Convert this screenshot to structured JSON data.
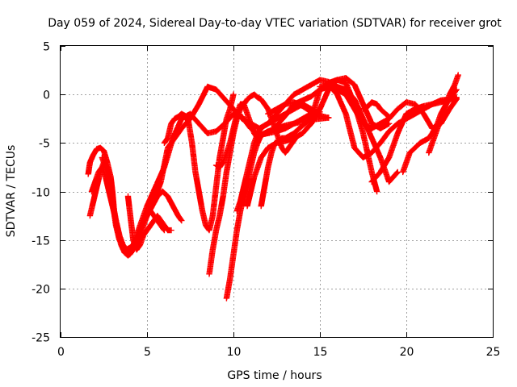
{
  "chart_data": {
    "type": "scatter",
    "title": "Day 059 of 2024, Sidereal Day-to-day VTEC variation (SDTVAR) for receiver grot",
    "xlabel": "GPS time / hours",
    "ylabel": "SDTVAR / TECUs",
    "xlim": [
      0,
      25
    ],
    "ylim": [
      -25,
      5
    ],
    "xticks": [
      "0",
      "5",
      "10",
      "15",
      "20",
      "25"
    ],
    "yticks": [
      "5",
      "0",
      "-5",
      "-10",
      "-15",
      "-20",
      "-25"
    ],
    "grid": true,
    "marker": "+",
    "marker_color": "#ff0000",
    "series": [
      {
        "x": [
          1.6,
          1.7,
          1.9,
          2.1,
          2.3,
          2.5,
          2.7,
          2.9,
          3.0,
          3.1,
          3.3,
          3.5,
          3.7,
          3.9,
          4.1,
          4.3,
          4.6,
          5.0,
          5.5,
          6.0,
          6.5,
          7.0,
          7.5,
          8.0,
          8.5,
          9.0,
          9.5,
          10.0,
          10.5,
          11.0,
          11.5,
          12.0,
          12.5,
          13.0,
          13.5,
          14.0,
          14.5,
          15.0,
          15.5,
          16.0,
          16.5,
          17.0,
          17.5,
          18.0,
          18.3
        ],
        "y": [
          -8.2,
          -7.0,
          -6.2,
          -5.6,
          -5.5,
          -5.8,
          -7.0,
          -8.5,
          -10.0,
          -12.0,
          -14.0,
          -15.5,
          -16.3,
          -16.6,
          -16.2,
          -15.0,
          -13.5,
          -11.5,
          -9.5,
          -7.5,
          -4.5,
          -2.5,
          -2.0,
          -3.0,
          -4.0,
          -3.8,
          -3.0,
          -2.0,
          -2.3,
          -3.5,
          -4.2,
          -4.0,
          -3.2,
          -2.2,
          -1.0,
          -0.6,
          -0.2,
          0.5,
          1.2,
          1.5,
          1.2,
          -1.0,
          -4.0,
          -8.0,
          -10.0
        ]
      },
      {
        "x": [
          1.7,
          1.9,
          2.1,
          2.3,
          2.5,
          2.7,
          2.9,
          3.0,
          3.2,
          3.4,
          3.6,
          3.8,
          4.0,
          4.2,
          4.4,
          4.6,
          4.8,
          5.0,
          5.4,
          5.8,
          6.2,
          6.6,
          7.0,
          7.5,
          8.0,
          8.5,
          9.0,
          9.5,
          10.0,
          10.5,
          11.0,
          11.5,
          12.0,
          12.5,
          13.0,
          13.5,
          14.0,
          14.5,
          15.0,
          15.5,
          16.0,
          16.5,
          17.0,
          17.5,
          18.0,
          18.5,
          19.0,
          19.5
        ],
        "y": [
          -12.5,
          -11.0,
          -9.5,
          -8.0,
          -7.0,
          -7.5,
          -9.0,
          -11.0,
          -13.5,
          -15.0,
          -15.5,
          -16.0,
          -16.5,
          -16.0,
          -15.3,
          -14.5,
          -13.5,
          -12.5,
          -11.0,
          -9.0,
          -5.5,
          -4.5,
          -3.5,
          -2.5,
          -1.0,
          0.8,
          0.5,
          -0.5,
          -1.5,
          -2.5,
          -3.0,
          -3.5,
          -3.0,
          -2.0,
          -1.0,
          0.0,
          0.5,
          1.0,
          1.5,
          1.3,
          0.8,
          0.5,
          -0.5,
          -2.5,
          -4.5,
          -6.5,
          -9.0,
          -8.0
        ]
      },
      {
        "x": [
          1.8,
          2.0,
          2.2,
          2.4,
          2.6,
          2.8,
          3.0,
          3.2,
          3.4,
          3.6,
          3.8,
          4.0,
          4.2,
          4.4,
          4.6,
          4.8,
          5.0,
          5.3,
          5.6,
          5.9,
          6.2,
          6.5,
          6.8,
          7.0
        ],
        "y": [
          -10.0,
          -9.0,
          -8.0,
          -7.5,
          -8.5,
          -10.0,
          -11.5,
          -13.0,
          -14.5,
          -15.5,
          -16.0,
          -15.8,
          -15.5,
          -15.0,
          -14.0,
          -13.0,
          -12.5,
          -11.5,
          -10.5,
          -10.0,
          -10.5,
          -11.5,
          -12.5,
          -13.0
        ]
      },
      {
        "x": [
          2.4,
          2.6,
          2.8,
          3.0,
          3.2,
          3.4,
          3.6,
          3.8,
          4.0,
          4.2,
          4.4,
          4.6,
          4.8,
          5.0,
          5.2,
          5.4,
          5.6,
          5.8,
          6.0
        ],
        "y": [
          -6.5,
          -7.5,
          -9.0,
          -11.0,
          -13.0,
          -14.5,
          -15.5,
          -16.0,
          -16.2,
          -16.0,
          -15.0,
          -14.0,
          -13.0,
          -12.5,
          -12.0,
          -12.5,
          -13.0,
          -13.5,
          -14.0
        ]
      },
      {
        "x": [
          3.9,
          4.0,
          4.1,
          4.2,
          4.4,
          4.6,
          4.8,
          5.0,
          5.2,
          5.4,
          5.6,
          5.8,
          6.0,
          6.2,
          6.4
        ],
        "y": [
          -10.5,
          -12.0,
          -13.5,
          -15.0,
          -16.0,
          -15.5,
          -14.5,
          -14.0,
          -13.5,
          -13.0,
          -12.5,
          -13.0,
          -13.5,
          -14.0,
          -14.0
        ]
      },
      {
        "x": [
          6.0,
          6.2,
          6.4,
          6.6,
          6.8,
          7.0,
          7.2,
          7.4,
          7.6,
          7.8,
          8.0,
          8.2,
          8.4,
          8.6,
          8.8,
          9.0,
          9.2,
          9.4,
          9.6,
          9.8,
          10.0
        ],
        "y": [
          -5.0,
          -4.5,
          -3.0,
          -2.5,
          -2.3,
          -2.0,
          -2.2,
          -2.8,
          -5.0,
          -8.0,
          -10.0,
          -12.0,
          -13.5,
          -14.0,
          -12.5,
          -9.5,
          -6.5,
          -4.5,
          -2.5,
          -1.5,
          0.0
        ]
      },
      {
        "x": [
          8.6,
          8.8,
          9.0,
          9.2,
          9.4,
          9.6,
          9.8,
          10.0,
          10.2,
          10.4,
          10.6,
          10.8,
          11.0,
          11.2,
          11.4,
          11.6,
          11.8,
          12.0,
          12.2,
          12.4,
          12.6,
          12.8,
          13.0,
          13.2,
          13.4,
          13.6
        ],
        "y": [
          -18.5,
          -16.0,
          -14.0,
          -12.5,
          -10.5,
          -8.0,
          -6.0,
          -4.0,
          -2.5,
          -1.5,
          -1.0,
          -0.5,
          -0.2,
          0.0,
          -0.3,
          -0.5,
          -1.0,
          -1.5,
          -2.5,
          -3.5,
          -4.5,
          -5.5,
          -6.0,
          -5.5,
          -5.0,
          -4.5
        ]
      },
      {
        "x": [
          9.0,
          9.2,
          9.4,
          9.6,
          9.8,
          10.0,
          10.2,
          10.4,
          10.6,
          10.8,
          11.0,
          11.2,
          11.4,
          11.6,
          11.8,
          12.0,
          12.5,
          13.0,
          13.5,
          14.0,
          14.5,
          15.0,
          15.5
        ],
        "y": [
          -7.3,
          -7.5,
          -7.0,
          -6.0,
          -5.0,
          -3.5,
          -2.0,
          -1.0,
          -1.0,
          -2.0,
          -3.0,
          -4.0,
          -4.5,
          -4.2,
          -4.0,
          -3.8,
          -3.5,
          -3.2,
          -3.0,
          -2.8,
          -2.6,
          -2.5,
          -2.4
        ]
      },
      {
        "x": [
          9.6,
          9.8,
          10.0,
          10.2,
          10.4,
          10.6,
          10.8,
          11.0,
          11.2,
          11.4,
          11.6,
          11.8,
          12.0,
          12.5,
          13.0,
          13.5,
          14.0,
          14.5,
          15.0
        ],
        "y": [
          -21.0,
          -19.0,
          -16.5,
          -14.0,
          -12.0,
          -10.5,
          -9.0,
          -7.5,
          -6.0,
          -5.0,
          -4.2,
          -4.0,
          -4.0,
          -3.8,
          -3.5,
          -3.0,
          -2.5,
          -2.0,
          -1.8
        ]
      },
      {
        "x": [
          10.2,
          10.4,
          10.6,
          10.8,
          11.0,
          11.2,
          11.4,
          11.6,
          11.8,
          12.0,
          12.5,
          13.0,
          13.5,
          14.0,
          14.5,
          15.0
        ],
        "y": [
          -12.0,
          -11.0,
          -9.5,
          -8.0,
          -6.5,
          -5.0,
          -4.0,
          -3.5,
          -3.2,
          -3.0,
          -2.5,
          -2.0,
          -1.5,
          -1.0,
          -1.5,
          -2.0
        ]
      },
      {
        "x": [
          10.8,
          11.0,
          11.2,
          11.4,
          11.6,
          11.8,
          12.0,
          12.5,
          13.0,
          13.5,
          14.0,
          14.5,
          15.0,
          15.5,
          16.0,
          16.5,
          17.0,
          17.5,
          18.0,
          18.5,
          19.0
        ],
        "y": [
          -11.5,
          -10.0,
          -8.5,
          -7.5,
          -6.5,
          -6.0,
          -5.5,
          -5.0,
          -4.8,
          -4.5,
          -4.0,
          -3.0,
          -1.5,
          0.5,
          1.5,
          1.7,
          1.0,
          -1.0,
          -3.0,
          -3.5,
          -3.0
        ]
      },
      {
        "x": [
          11.6,
          11.8,
          12.0,
          12.2,
          12.4,
          12.6,
          12.8,
          13.0,
          13.5,
          14.0,
          14.5,
          15.0,
          15.5,
          16.0,
          16.5,
          17.0,
          17.5,
          18.0,
          18.5,
          19.0,
          19.5,
          20.0,
          20.5,
          21.0,
          21.5,
          22.0,
          22.5,
          22.9
        ],
        "y": [
          -11.5,
          -9.5,
          -7.5,
          -6.0,
          -5.0,
          -4.8,
          -4.5,
          -4.5,
          -4.0,
          -3.2,
          -2.5,
          0.5,
          0.8,
          0.5,
          0.0,
          -1.5,
          -3.0,
          -3.5,
          -3.0,
          -2.5,
          -1.5,
          -0.8,
          -1.0,
          -2.0,
          -3.5,
          -3.0,
          -1.5,
          -0.5
        ]
      },
      {
        "x": [
          15.0,
          15.5,
          16.0,
          16.5,
          17.0,
          17.5,
          18.0,
          18.5,
          19.0,
          19.5,
          20.0,
          20.5,
          21.0,
          21.5,
          22.0,
          22.5,
          22.9
        ],
        "y": [
          0.8,
          1.0,
          0.0,
          -2.0,
          -5.5,
          -6.5,
          -6.0,
          -5.0,
          -3.8,
          -3.0,
          -2.5,
          -2.0,
          -1.5,
          -1.0,
          -0.6,
          -0.5,
          -0.3
        ]
      },
      {
        "x": [
          18.0,
          18.5,
          19.0,
          19.5,
          20.0,
          20.5,
          21.0,
          21.5,
          22.0,
          22.5,
          22.9
        ],
        "y": [
          -9.0,
          -8.0,
          -6.5,
          -4.0,
          -2.0,
          -1.5,
          -1.2,
          -1.0,
          -0.8,
          -0.5,
          -0.4
        ]
      },
      {
        "x": [
          19.8,
          20.0,
          20.2,
          20.5,
          20.8,
          21.0,
          21.3,
          21.5,
          21.8,
          22.0,
          22.3,
          22.5,
          22.8,
          23.0
        ],
        "y": [
          -8.0,
          -7.0,
          -6.0,
          -5.5,
          -5.0,
          -4.8,
          -4.5,
          -4.0,
          -3.0,
          -2.0,
          -1.0,
          0.0,
          1.0,
          2.0
        ]
      },
      {
        "x": [
          21.3,
          21.5,
          21.7,
          21.9,
          22.1,
          22.3,
          22.5,
          22.7,
          22.9
        ],
        "y": [
          -6.0,
          -5.0,
          -4.0,
          -3.0,
          -2.0,
          -1.0,
          -0.5,
          0.0,
          0.5
        ]
      },
      {
        "x": [
          12.0,
          12.5,
          13.0,
          13.5,
          14.0,
          14.5,
          15.0,
          15.5
        ],
        "y": [
          -2.0,
          -1.5,
          -1.0,
          -0.8,
          -1.2,
          -1.8,
          -2.2,
          -2.4
        ]
      },
      {
        "x": [
          17.5,
          17.8,
          18.0,
          18.3,
          18.5,
          18.8,
          19.0
        ],
        "y": [
          -1.5,
          -1.2,
          -0.8,
          -1.0,
          -1.5,
          -2.0,
          -2.3
        ]
      }
    ]
  }
}
